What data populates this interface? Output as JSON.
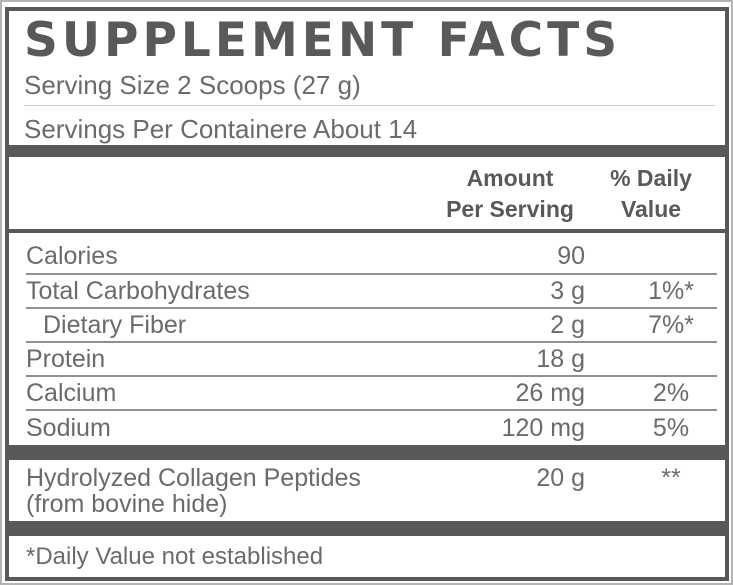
{
  "label": {
    "title": "SUPPLEMENT FACTS",
    "serving_size": "Serving Size 2 Scoops (27 g)",
    "servings_per_container": "Servings Per Containere About 14",
    "footnote": "*Daily Value not established"
  },
  "columns": {
    "amount_line1": "Amount",
    "amount_line2": "Per Serving",
    "dv_line1": "% Daily",
    "dv_line2": "Value"
  },
  "rows": [
    {
      "name": "Calories",
      "amount": "90",
      "dv": ""
    },
    {
      "name": "Total Carbohydrates",
      "amount": "3 g",
      "dv": "1%*"
    },
    {
      "name": "Dietary Fiber",
      "amount": "2 g",
      "dv": "7%*"
    },
    {
      "name": "Protein",
      "amount": "18 g",
      "dv": ""
    },
    {
      "name": "Calcium",
      "amount": "26 mg",
      "dv": "2%"
    },
    {
      "name": "Sodium",
      "amount": "120 mg",
      "dv": "5%"
    }
  ],
  "collagen": {
    "name": "Hydrolyzed Collagen Peptides",
    "source": "(from bovine hide)",
    "amount": "20 g",
    "dv": "**"
  },
  "colors": {
    "dark_gray": "#58595b",
    "text_gray": "#6a6b6d"
  }
}
